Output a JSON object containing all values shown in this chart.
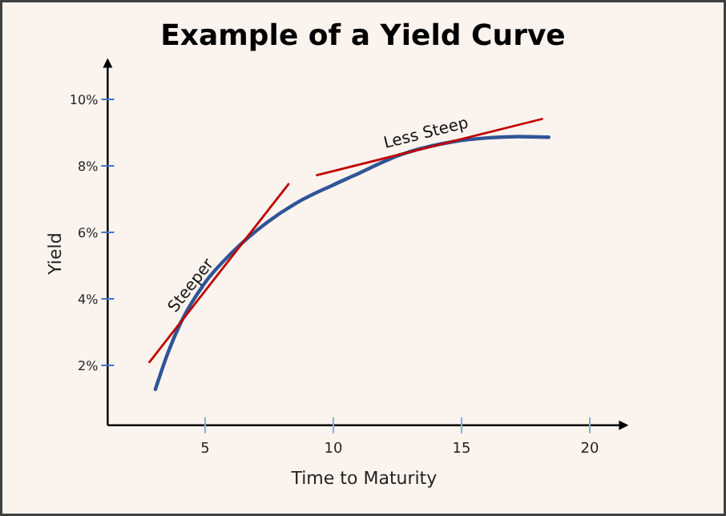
{
  "chart_data": {
    "type": "line",
    "title": "Example of a Yield Curve",
    "xlabel": "Time to Maturity",
    "ylabel": "Yield",
    "xlim": [
      1.2,
      21.2
    ],
    "xticks": [
      5,
      10,
      15,
      20
    ],
    "ylim": [
      0.2,
      11
    ],
    "yticks": [
      {
        "value": 2,
        "label": "2%"
      },
      {
        "value": 4,
        "label": "4%"
      },
      {
        "value": 6,
        "label": "6%"
      },
      {
        "value": 8,
        "label": "8%"
      },
      {
        "value": 10,
        "label": "10%"
      }
    ],
    "grid": false,
    "marker": "none",
    "line_style": "solid",
    "series": [
      {
        "color": "#2f5597",
        "x": [
          3.06,
          3.56,
          4.06,
          4.98,
          6.06,
          7.42,
          8.6,
          9.92,
          10.75,
          12.6,
          14.7,
          16,
          17.2,
          18.4
        ],
        "values": [
          1.28,
          2.4,
          3.3,
          4.47,
          5.4,
          6.3,
          6.9,
          7.4,
          7.69,
          8.33,
          8.73,
          8.84,
          8.88,
          8.86
        ]
      },
      {
        "color": "#c00000",
        "x": [
          2.83,
          8.25
        ],
        "values": [
          2.1,
          7.45
        ]
      },
      {
        "color": "#c00000",
        "x": [
          9.36,
          18.14
        ],
        "values": [
          7.72,
          9.41
        ]
      }
    ],
    "annotations": [
      "Steeper",
      "Less Steep"
    ]
  }
}
